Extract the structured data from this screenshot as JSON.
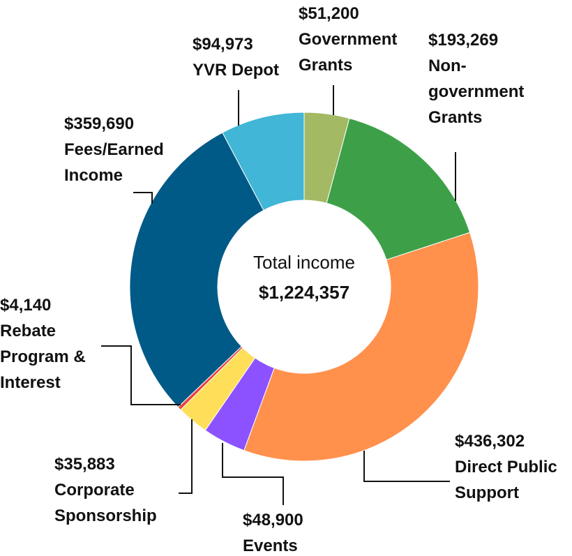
{
  "chart_data": {
    "type": "pie",
    "variant": "donut",
    "center_label": "Total income",
    "center_value": "$1,224,357",
    "total": 1224357,
    "slices": [
      {
        "label": [
          "Government",
          "Grants"
        ],
        "value_text": "$51,200",
        "value": 51200,
        "color": "#A3B964"
      },
      {
        "label": [
          "Non-",
          "government",
          "Grants"
        ],
        "value_text": "$193,269",
        "value": 193269,
        "color": "#3DA048"
      },
      {
        "label": [
          "Direct Public",
          "Support"
        ],
        "value_text": "$436,302",
        "value": 436302,
        "color": "#FF914D"
      },
      {
        "label": [
          "Events"
        ],
        "value_text": "$48,900",
        "value": 48900,
        "color": "#8C52FF"
      },
      {
        "label": [
          "Corporate",
          "Sponsorship"
        ],
        "value_text": "$35,883",
        "value": 35883,
        "color": "#FFDE59"
      },
      {
        "label": [
          "Rebate",
          "Program &",
          "Interest"
        ],
        "value_text": "$4,140",
        "value": 4140,
        "color": "#E8453C"
      },
      {
        "label": [
          "Fees/Earned",
          "Income"
        ],
        "value_text": "$359,690",
        "value": 359690,
        "color": "#005A87"
      },
      {
        "label": [
          "YVR Depot"
        ],
        "value_text": "$94,973",
        "value": 94973,
        "color": "#41B6D6"
      }
    ]
  }
}
